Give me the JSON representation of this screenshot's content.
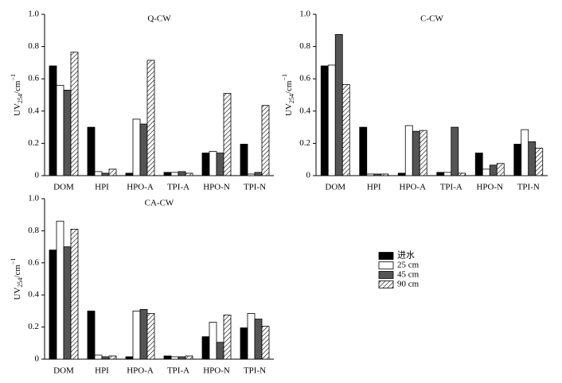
{
  "chart_data": [
    {
      "type": "bar",
      "title": "Q-CW",
      "ylabel": {
        "base": "UV",
        "sub": "254",
        "mid": "/cm",
        "sup": "−1"
      },
      "categories": [
        "DOM",
        "HPI",
        "HPO-A",
        "TPI-A",
        "HPO-N",
        "TPI-N"
      ],
      "ylim": [
        0,
        1
      ],
      "yticks": [
        0,
        0.2,
        0.4,
        0.6,
        0.8,
        {
          "value": 1,
          "label": "1.0"
        }
      ],
      "series": [
        {
          "name": "进水",
          "color": "#000000",
          "values": [
            0.68,
            0.3,
            0.015,
            0.02,
            0.14,
            0.195
          ]
        },
        {
          "name": "25 cm",
          "color": "#ffffff",
          "values": [
            0.56,
            0.025,
            0.35,
            0.02,
            0.15,
            0.01
          ]
        },
        {
          "name": "45 cm",
          "color": "#555555",
          "values": [
            0.53,
            0.015,
            0.32,
            0.025,
            0.14,
            0.02
          ]
        },
        {
          "name": "90 cm",
          "color": "#ffffff",
          "pattern": "hatch",
          "values": [
            0.765,
            0.04,
            0.715,
            0.015,
            0.51,
            0.435
          ]
        }
      ]
    },
    {
      "type": "bar",
      "title": "C-CW",
      "ylabel": {
        "base": "UV",
        "sub": "254",
        "mid": "/cm",
        "sup": "−1"
      },
      "categories": [
        "DOM",
        "HPI",
        "HPO-A",
        "TPI-A",
        "HPO-N",
        "TPI-N"
      ],
      "ylim": [
        0,
        1
      ],
      "yticks": [
        0,
        0.2,
        0.4,
        0.6,
        0.8,
        {
          "value": 1,
          "label": "1.0"
        }
      ],
      "series": [
        {
          "color": "#000000",
          "values": [
            0.68,
            0.3,
            0.015,
            0.02,
            0.14,
            0.195
          ]
        },
        {
          "color": "#ffffff",
          "values": [
            0.685,
            0.01,
            0.31,
            0.02,
            0.04,
            0.285
          ]
        },
        {
          "color": "#555555",
          "values": [
            0.875,
            0.01,
            0.275,
            0.3,
            0.065,
            0.21
          ]
        },
        {
          "color": "#ffffff",
          "pattern": "hatch",
          "values": [
            0.565,
            0.01,
            0.28,
            0.015,
            0.075,
            0.17
          ]
        }
      ]
    },
    {
      "type": "bar",
      "title": "CA-CW",
      "ylabel": {
        "base": "UV",
        "sub": "254",
        "mid": "/cm",
        "sup": "−1"
      },
      "categories": [
        "DOM",
        "HPI",
        "HPO-A",
        "TPI-A",
        "HPO-N",
        "TPI-N"
      ],
      "ylim": [
        0,
        1
      ],
      "yticks": [
        0,
        0.2,
        0.4,
        0.6,
        0.8,
        {
          "value": 1,
          "label": "1.0"
        }
      ],
      "series": [
        {
          "color": "#000000",
          "values": [
            0.68,
            0.3,
            0.015,
            0.02,
            0.14,
            0.195
          ]
        },
        {
          "color": "#ffffff",
          "values": [
            0.86,
            0.025,
            0.3,
            0.015,
            0.23,
            0.285
          ]
        },
        {
          "color": "#555555",
          "values": [
            0.7,
            0.015,
            0.31,
            0.015,
            0.105,
            0.25
          ]
        },
        {
          "color": "#ffffff",
          "pattern": "hatch",
          "values": [
            0.81,
            0.02,
            0.285,
            0.02,
            0.275,
            0.205
          ]
        }
      ]
    }
  ]
}
